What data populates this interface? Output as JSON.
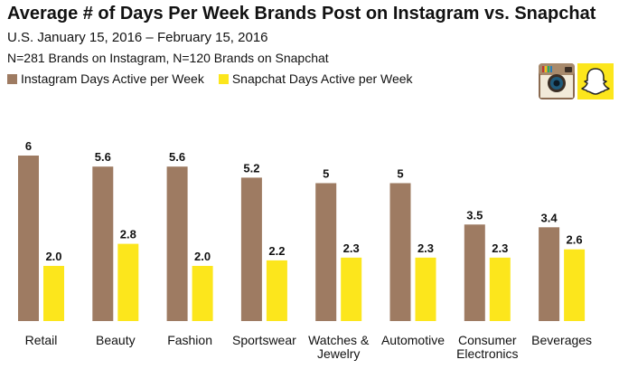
{
  "chart_data": {
    "type": "bar",
    "title": "Average # of Days Per Week Brands Post on Instagram vs. Snapchat",
    "subtitle": "U.S. January 15, 2016 – February 15, 2016",
    "note": "N=281 Brands on Instagram, N=120 Brands on Snapchat",
    "categories": [
      "Retail",
      "Beauty",
      "Fashion",
      "Sportswear",
      "Watches & Jewelry",
      "Automotive",
      "Consumer Electronics",
      "Beverages"
    ],
    "category_lines": [
      [
        "Retail"
      ],
      [
        "Beauty"
      ],
      [
        "Fashion"
      ],
      [
        "Sportswear"
      ],
      [
        "Watches &",
        "Jewelry"
      ],
      [
        "Automotive"
      ],
      [
        "Consumer",
        "Electronics"
      ],
      [
        "Beverages"
      ]
    ],
    "series": [
      {
        "name": "Instagram Days Active per Week",
        "color": "#9e7b62",
        "values": [
          6,
          5.6,
          5.6,
          5.2,
          5,
          5,
          3.5,
          3.4
        ],
        "labels": [
          "6",
          "5.6",
          "5.6",
          "5.2",
          "5",
          "5",
          "3.5",
          "3.4"
        ]
      },
      {
        "name": "Snapchat Days Active per Week",
        "color": "#fce61c",
        "values": [
          2.0,
          2.8,
          2.0,
          2.2,
          2.3,
          2.3,
          2.3,
          2.6
        ],
        "labels": [
          "2.0",
          "2.8",
          "2.0",
          "2.2",
          "2.3",
          "2.3",
          "2.3",
          "2.6"
        ]
      }
    ],
    "ylim": [
      0,
      6.3
    ],
    "grid": false,
    "legend_position": "top-left",
    "xlabel": "",
    "ylabel": ""
  },
  "logos": {
    "instagram": "instagram-logo-icon",
    "snapchat": "snapchat-ghost-icon"
  }
}
